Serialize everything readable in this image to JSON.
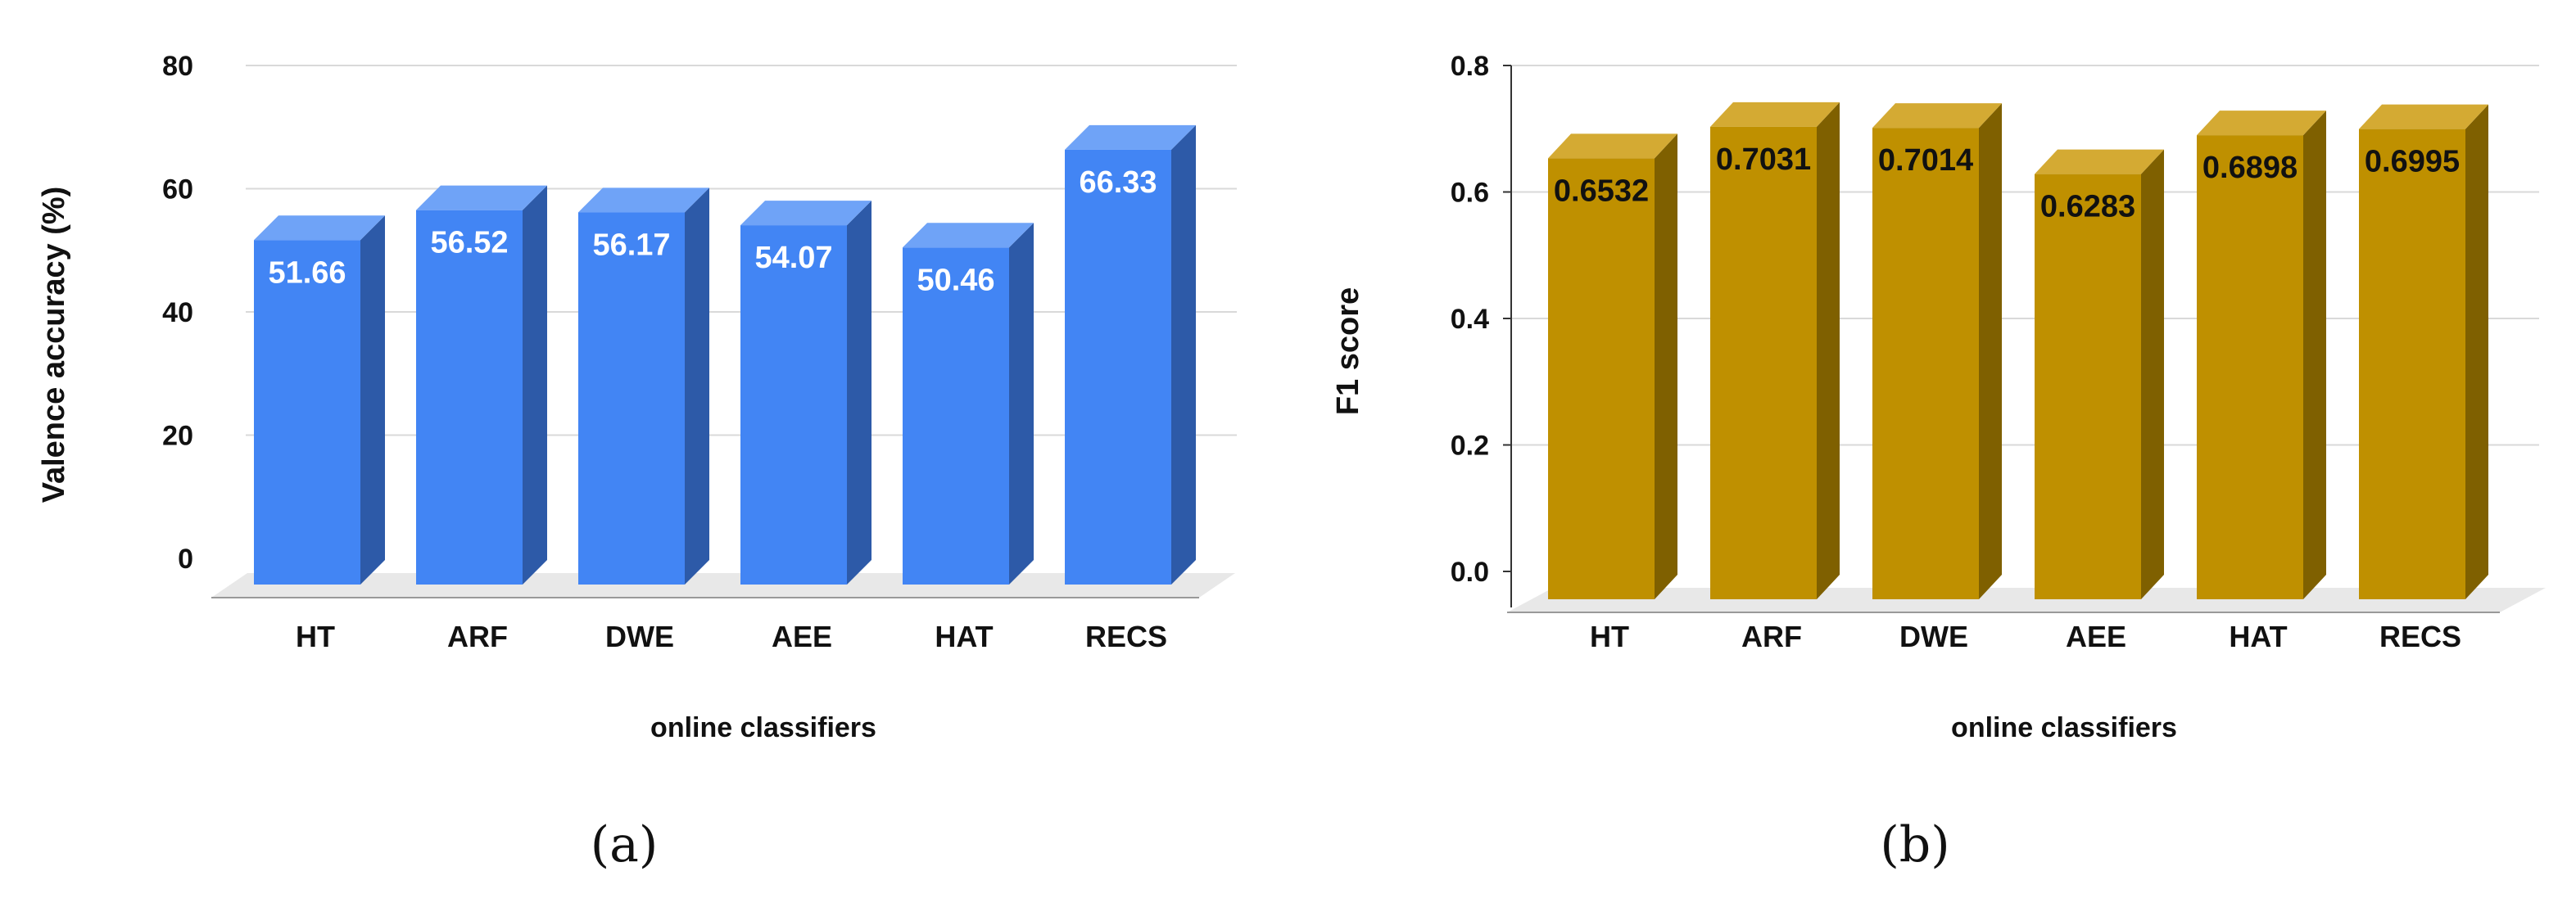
{
  "chart_data": [
    {
      "type": "bar",
      "style": "3d",
      "panel_label": "(a)",
      "categories": [
        "HT",
        "ARF",
        "DWE",
        "AEE",
        "HAT",
        "RECS"
      ],
      "values": [
        51.66,
        56.52,
        56.17,
        54.07,
        50.46,
        66.33
      ],
      "value_labels": [
        "51.66",
        "56.52",
        "56.17",
        "54.07",
        "50.46",
        "66.33"
      ],
      "title": "",
      "xlabel": "online classifiers",
      "ylabel": "Valence accuracy (%)",
      "ylim": [
        0,
        80
      ],
      "yticks": [
        0,
        20,
        40,
        60,
        80
      ],
      "ytick_labels": [
        "0",
        "20",
        "40",
        "60",
        "80"
      ],
      "grid": true,
      "colors": {
        "front": "#4285f4",
        "top": "#6fa3f7",
        "side": "#2d5aa8",
        "label": "#ffffff"
      }
    },
    {
      "type": "bar",
      "style": "3d",
      "panel_label": "(b)",
      "categories": [
        "HT",
        "ARF",
        "DWE",
        "AEE",
        "HAT",
        "RECS"
      ],
      "values": [
        0.6532,
        0.7031,
        0.7014,
        0.6283,
        0.6898,
        0.6995
      ],
      "value_labels": [
        "0.6532",
        "0.7031",
        "0.7014",
        "0.6283",
        "0.6898",
        "0.6995"
      ],
      "title": "",
      "xlabel": "online classifiers",
      "ylabel": "F1 score",
      "ylim": [
        0,
        0.8
      ],
      "yticks": [
        0,
        0.2,
        0.4,
        0.6,
        0.8
      ],
      "ytick_labels": [
        "0.0",
        "0.2",
        "0.4",
        "0.6",
        "0.8"
      ],
      "grid": true,
      "colors": {
        "front": "#bf9000",
        "top": "#d4aa33",
        "side": "#7f6000",
        "label": "#111111"
      }
    }
  ]
}
